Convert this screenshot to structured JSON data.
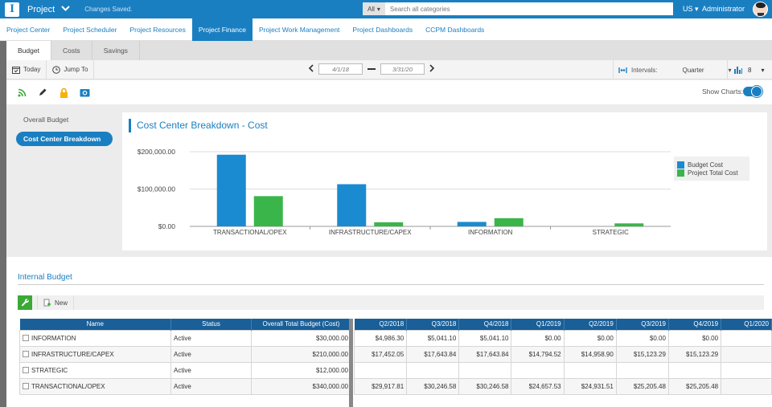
{
  "topbar": {
    "app_title": "Project",
    "status": "Changes Saved.",
    "search_category": "All",
    "search_placeholder": "Search all categories",
    "locale": "US",
    "user": "Administrator"
  },
  "nav": {
    "tabs": [
      {
        "label": "Project Center",
        "active": false
      },
      {
        "label": "Project Scheduler",
        "active": false
      },
      {
        "label": "Project Resources",
        "active": false
      },
      {
        "label": "Project Finance",
        "active": true
      },
      {
        "label": "Project Work Management",
        "active": false
      },
      {
        "label": "Project Dashboards",
        "active": false
      },
      {
        "label": "CCPM Dashboards",
        "active": false
      }
    ]
  },
  "subtabs": [
    {
      "label": "Budget",
      "active": true
    },
    {
      "label": "Costs",
      "active": false
    },
    {
      "label": "Savings",
      "active": false
    }
  ],
  "toolbar": {
    "today_label": "Today",
    "jump_label": "Jump To",
    "start_date": "4/1/18",
    "end_date": "3/31/20",
    "intervals_label": "Intervals:",
    "interval_value": "Quarter",
    "columns_count": "8",
    "show_charts_label": "Show Charts:"
  },
  "side_nav": [
    {
      "label": "Overall Budget",
      "active": false
    },
    {
      "label": "Cost Center Breakdown",
      "active": true
    }
  ],
  "chart_data": {
    "type": "bar",
    "title": "Cost Center Breakdown - Cost",
    "categories": [
      "TRANSACTIONAL/OPEX",
      "INFRASTRUCTURE/CAPEX",
      "INFORMATION",
      "STRATEGIC"
    ],
    "series": [
      {
        "name": "Budget Cost",
        "color": "#1a8bd0",
        "values": [
          192000,
          113000,
          12000,
          0
        ]
      },
      {
        "name": "Project Total Cost",
        "color": "#3ab54a",
        "values": [
          81000,
          11000,
          22000,
          8000
        ]
      }
    ],
    "yticks": [
      "$0.00",
      "$100,000.00",
      "$200,000.00"
    ],
    "ylim": [
      0,
      200000
    ],
    "legend_position": "right",
    "grid": true
  },
  "internal_budget": {
    "title": "Internal Budget",
    "new_label": "New",
    "left_columns": [
      "Name",
      "Status",
      "Overall Total Budget (Cost)"
    ],
    "right_columns": [
      "Q2/2018",
      "Q3/2018",
      "Q4/2018",
      "Q1/2019",
      "Q2/2019",
      "Q3/2019",
      "Q4/2019",
      "Q1/2020"
    ],
    "rows": [
      {
        "name": "INFORMATION",
        "status": "Active",
        "total": "$30,000.00",
        "quarters": [
          "$4,986.30",
          "$5,041.10",
          "$5,041.10",
          "$0.00",
          "$0.00",
          "$0.00",
          "$0.00",
          ""
        ]
      },
      {
        "name": "INFRASTRUCTURE/CAPEX",
        "status": "Active",
        "total": "$210,000.00",
        "quarters": [
          "$17,452.05",
          "$17,643.84",
          "$17,643.84",
          "$14,794.52",
          "$14,958.90",
          "$15,123.29",
          "$15,123.29",
          ""
        ]
      },
      {
        "name": "STRATEGIC",
        "status": "Active",
        "total": "$12,000.00",
        "quarters": [
          "",
          "",
          "",
          "",
          "",
          "",
          "",
          ""
        ]
      },
      {
        "name": "TRANSACTIONAL/OPEX",
        "status": "Active",
        "total": "$340,000.00",
        "quarters": [
          "$29,917.81",
          "$30,246.58",
          "$30,246.58",
          "$24,657.53",
          "$24,931.51",
          "$25,205.48",
          "$25,205.48",
          ""
        ]
      }
    ]
  }
}
